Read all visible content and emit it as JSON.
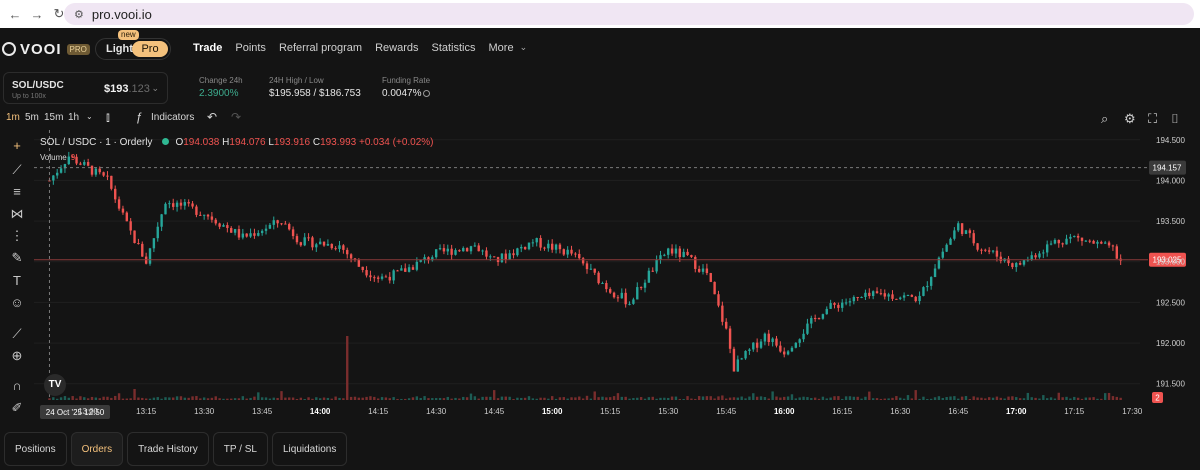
{
  "browser": {
    "url": "pro.vooi.io"
  },
  "nav": {
    "brand": "VOOI",
    "brand_badge": "PRO",
    "toggle_light": "Light",
    "toggle_pro": "Pro",
    "toggle_new": "new",
    "items": [
      "Trade",
      "Points",
      "Referral program",
      "Rewards",
      "Statistics",
      "More"
    ]
  },
  "market": {
    "pair": "SOL/USDC",
    "leverage": "Up to 100x",
    "price_main": "$193",
    "price_fraction": ".123",
    "change_label": "Change 24h",
    "change_value": "2.3900%",
    "hilo_label": "24H High / Low",
    "hilo_value": "$195.958 / $186.753",
    "funding_label": "Funding Rate",
    "funding_value": "0.0047%"
  },
  "toolbar": {
    "intervals": [
      "1m",
      "5m",
      "15m",
      "1h"
    ],
    "indicators": "Indicators"
  },
  "legend": {
    "title": "SOL / USDC · 1 · Orderly",
    "o_label": "O",
    "o_value": "194.038",
    "h_label": "H",
    "h_value": "194.076",
    "l_label": "L",
    "l_value": "193.916",
    "c_label": "C",
    "c_value": "193.993",
    "change": "+0.034 (+0.02%)",
    "volume_label": "Volume",
    "volume_value": "9"
  },
  "tabs": [
    "Positions",
    "Orders",
    "Trade History",
    "TP / SL",
    "Liquidations"
  ],
  "colors": {
    "up": "#26a69a",
    "down": "#ef5350",
    "accent": "#f4c17c",
    "bg": "#141414"
  },
  "chart_data": {
    "type": "candlestick",
    "title": "SOL / USDC · 1 · Orderly",
    "x_ticks": [
      "13:00",
      "13:15",
      "13:30",
      "13:45",
      "14:00",
      "14:15",
      "14:30",
      "14:45",
      "15:00",
      "15:15",
      "15:30",
      "15:45",
      "16:00",
      "16:15",
      "16:30",
      "16:45",
      "17:00",
      "17:15",
      "17:30"
    ],
    "x_tick_labels": [
      "13:00",
      "13:15",
      "13:30",
      "13:45",
      "14:00",
      "14:15",
      "14:30",
      "14:45",
      "15:00",
      "15:15",
      "15:30",
      "15:45",
      "16:00",
      "16:15",
      "16:30",
      "16:45",
      "17:00",
      "17:15",
      "17:30"
    ],
    "bold_ticks": [
      "14:00",
      "15:00",
      "16:00",
      "17:00"
    ],
    "y_ticks": [
      191.5,
      192.0,
      192.5,
      193.0,
      193.5,
      194.0,
      194.5
    ],
    "y_tick_labels": [
      "191.500",
      "192.000",
      "192.500",
      "193.000",
      "193.500",
      "194.000",
      "194.500"
    ],
    "ylim": [
      191.3,
      194.62
    ],
    "crosshair": {
      "time": "24 Oct '25   12:50",
      "price": "194.157"
    },
    "last_price": "193.025",
    "last_price_value": 193.025,
    "price_scale_badge": "2",
    "close_path": [
      [
        "12:50",
        194.0
      ],
      [
        "12:55",
        194.3
      ],
      [
        "13:05",
        194.0
      ],
      [
        "13:10",
        193.45
      ],
      [
        "13:15",
        193.0
      ],
      [
        "13:20",
        193.75
      ],
      [
        "13:30",
        193.6
      ],
      [
        "13:40",
        193.3
      ],
      [
        "13:50",
        193.5
      ],
      [
        "13:55",
        193.25
      ],
      [
        "14:05",
        193.2
      ],
      [
        "14:10",
        192.95
      ],
      [
        "14:15",
        192.8
      ],
      [
        "14:20",
        192.85
      ],
      [
        "14:30",
        193.1
      ],
      [
        "14:40",
        193.2
      ],
      [
        "14:45",
        193.0
      ],
      [
        "14:55",
        193.25
      ],
      [
        "15:05",
        193.1
      ],
      [
        "15:15",
        192.65
      ],
      [
        "15:20",
        192.5
      ],
      [
        "15:25",
        192.85
      ],
      [
        "15:30",
        193.15
      ],
      [
        "15:35",
        193.05
      ],
      [
        "15:40",
        192.85
      ],
      [
        "15:45",
        192.15
      ],
      [
        "15:47",
        191.7
      ],
      [
        "15:55",
        192.1
      ],
      [
        "16:00",
        191.9
      ],
      [
        "16:10",
        192.4
      ],
      [
        "16:15",
        192.5
      ],
      [
        "16:25",
        192.6
      ],
      [
        "16:35",
        192.55
      ],
      [
        "16:40",
        193.05
      ],
      [
        "16:45",
        193.45
      ],
      [
        "16:50",
        193.2
      ],
      [
        "17:00",
        192.95
      ],
      [
        "17:10",
        193.25
      ],
      [
        "17:15",
        193.3
      ],
      [
        "17:25",
        193.15
      ],
      [
        "17:27",
        193.0
      ]
    ]
  }
}
